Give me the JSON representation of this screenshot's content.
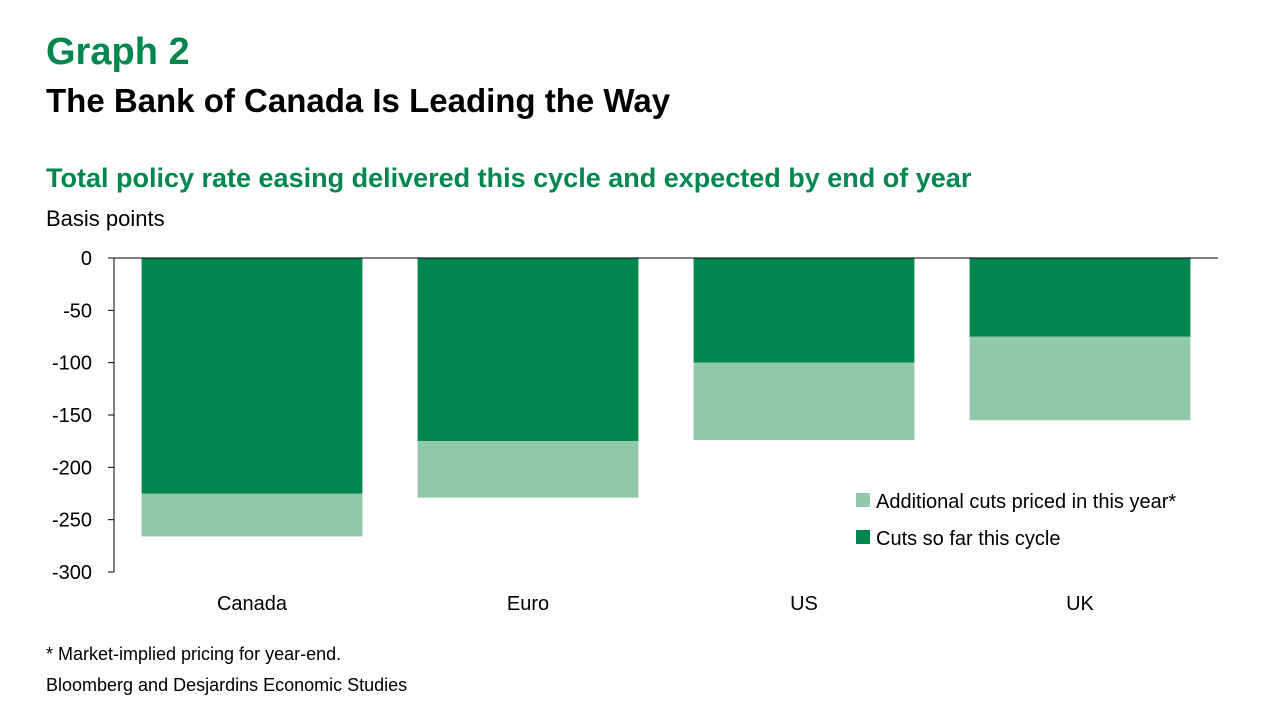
{
  "header": {
    "graph_label": "Graph 2",
    "title": "The Bank of Canada Is Leading the Way",
    "subtitle": "Total policy rate easing delivered this cycle and expected by end of year",
    "unit_label": "Basis points"
  },
  "colors": {
    "brand_green": "#00874E",
    "light_green": "#8FC9A8",
    "axis": "#000000"
  },
  "chart_data": {
    "type": "bar",
    "stacked": true,
    "categories": [
      "Canada",
      "Euro",
      "US",
      "UK"
    ],
    "series": [
      {
        "name": "Cuts so far this cycle",
        "color": "#00874E",
        "values": [
          -225,
          -175,
          -100,
          -75
        ]
      },
      {
        "name": "Additional cuts priced in this year*",
        "color": "#8FC9A8",
        "values": [
          -41,
          -54,
          -74,
          -80
        ]
      }
    ],
    "ylim": [
      -300,
      0
    ],
    "yticks": [
      0,
      -50,
      -100,
      -150,
      -200,
      -250,
      -300
    ],
    "ylabel": "Basis points",
    "legend_position": "bottom-right",
    "legend_order": [
      1,
      0
    ],
    "grid": false
  },
  "footer": {
    "footnote": "* Market-implied pricing for year-end.",
    "source": "Bloomberg and Desjardins Economic Studies"
  }
}
